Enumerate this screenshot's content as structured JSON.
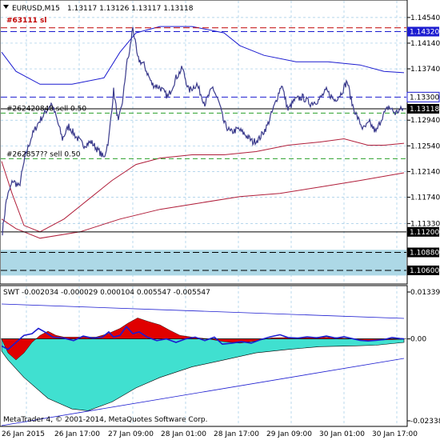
{
  "header": {
    "symbol_timeframe": "EURUSD,M15",
    "ohlc": "1.13117 1.13126 1.13117 1.13118",
    "overlay_label": "#63111 sl"
  },
  "main_chart": {
    "y_range": [
      1.104,
      1.148
    ],
    "price_ticks": [
      "1.14540",
      "1.14140",
      "1.13740",
      "1.12940",
      "1.12540",
      "1.12140",
      "1.11740",
      "1.11330"
    ],
    "ticks_values": [
      1.1454,
      1.1414,
      1.1374,
      1.1294,
      1.1254,
      1.1214,
      1.1174,
      1.1133
    ],
    "hlines": [
      {
        "label": "1.14320",
        "value": 1.1432,
        "color": "#1c1cd0",
        "style": "dash",
        "badge": true
      },
      {
        "label": "1.13300",
        "value": 1.133,
        "color": "#1c1cd0",
        "style": "dash",
        "badge": false
      },
      {
        "label": "1.13118",
        "value": 1.13118,
        "color": "#000000",
        "style": "solid",
        "badge": true
      },
      {
        "label": "1.11200",
        "value": 1.112,
        "color": "#000000",
        "style": "solid",
        "badge": true
      },
      {
        "label": "1.10880",
        "value": 1.1088,
        "color": "#000000",
        "style": "dash",
        "badge": true
      },
      {
        "label": "1.10600",
        "value": 1.106,
        "color": "#000000",
        "style": "dash",
        "badge": true
      }
    ],
    "red_line_value": 1.1438,
    "zone": {
      "from": 1.1052,
      "to": 1.1092,
      "color": "#add8e6"
    },
    "orders": [
      {
        "label": "#262420848 sell 0.50",
        "value": 1.1305
      },
      {
        "label": "#262857?? sell 0.50",
        "value": 1.1234
      }
    ],
    "colors": {
      "price": "#3a3a8c",
      "band_upper": "#1c1cd0",
      "band_lower": "#b01e3a",
      "order_line": "#2aa02a"
    }
  },
  "indicator": {
    "label": "SWT -0.002034 -0.000029 0.000104 0.005547 -0.005547",
    "ticks": [
      "0.013392",
      "0.00",
      "-0.023388"
    ],
    "ticks_values": [
      0.013392,
      0.0,
      -0.023388
    ],
    "colors": {
      "positive_area": "#e00000",
      "negative_area": "#40e0d0",
      "line": "#1c1cd0"
    }
  },
  "x_axis": {
    "labels": [
      "26 Jan 2015",
      "26 Jan 17:00",
      "27 Jan 09:00",
      "28 Jan 01:00",
      "28 Jan 17:00",
      "29 Jan 09:00",
      "30 Jan 01:00",
      "30 Jan 17:00"
    ]
  },
  "copyright": "MetaTrader 4, © 2001-2014, MetaQuotes Software Corp."
}
